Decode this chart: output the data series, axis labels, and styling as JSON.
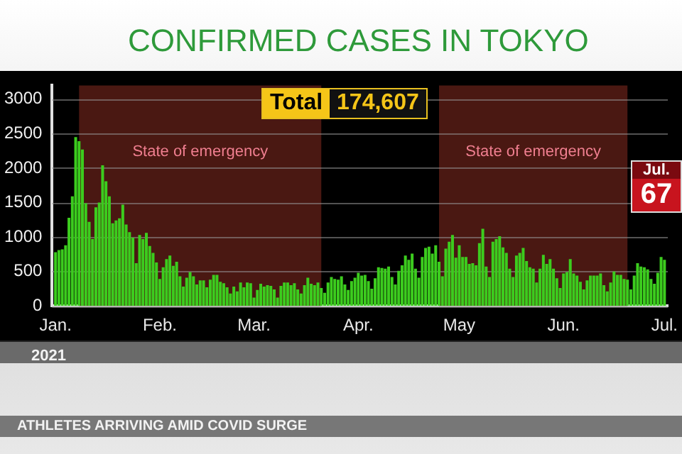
{
  "chart_data": {
    "type": "bar",
    "title": "CONFIRMED CASES IN TOKYO",
    "xlabel": "2021",
    "annotations": [
      "Total",
      "174,607",
      "Jul.",
      "67",
      "ATHLETES ARRIVING AMID COVID SURGE"
    ],
    "x": [
      "2021-01-01",
      "2021-01-02",
      "2021-01-03",
      "2021-01-04",
      "2021-01-05",
      "2021-01-06",
      "2021-01-07",
      "2021-01-08",
      "2021-01-09",
      "2021-01-10",
      "2021-01-11",
      "2021-01-12",
      "2021-01-13",
      "2021-01-14",
      "2021-01-15",
      "2021-01-16",
      "2021-01-17",
      "2021-01-18",
      "2021-01-19",
      "2021-01-20",
      "2021-01-21",
      "2021-01-22",
      "2021-01-23",
      "2021-01-24",
      "2021-01-25",
      "2021-01-26",
      "2021-01-27",
      "2021-01-28",
      "2021-01-29",
      "2021-01-30",
      "2021-01-31",
      "2021-02-01",
      "2021-02-02",
      "2021-02-03",
      "2021-02-04",
      "2021-02-05",
      "2021-02-06",
      "2021-02-07",
      "2021-02-08",
      "2021-02-09",
      "2021-02-10",
      "2021-02-11",
      "2021-02-12",
      "2021-02-13",
      "2021-02-14",
      "2021-02-15",
      "2021-02-16",
      "2021-02-17",
      "2021-02-18",
      "2021-02-19",
      "2021-02-20",
      "2021-02-21",
      "2021-02-22",
      "2021-02-23",
      "2021-02-24",
      "2021-02-25",
      "2021-02-26",
      "2021-02-27",
      "2021-02-28",
      "2021-03-01",
      "2021-03-02",
      "2021-03-03",
      "2021-03-04",
      "2021-03-05",
      "2021-03-06",
      "2021-03-07",
      "2021-03-08",
      "2021-03-09",
      "2021-03-10",
      "2021-03-11",
      "2021-03-12",
      "2021-03-13",
      "2021-03-14",
      "2021-03-15",
      "2021-03-16",
      "2021-03-17",
      "2021-03-18",
      "2021-03-19",
      "2021-03-20",
      "2021-03-21",
      "2021-03-22",
      "2021-03-23",
      "2021-03-24",
      "2021-03-25",
      "2021-03-26",
      "2021-03-27",
      "2021-03-28",
      "2021-03-29",
      "2021-03-30",
      "2021-03-31",
      "2021-04-01",
      "2021-04-02",
      "2021-04-03",
      "2021-04-04",
      "2021-04-05",
      "2021-04-06",
      "2021-04-07",
      "2021-04-08",
      "2021-04-09",
      "2021-04-10",
      "2021-04-11",
      "2021-04-12",
      "2021-04-13",
      "2021-04-14",
      "2021-04-15",
      "2021-04-16",
      "2021-04-17",
      "2021-04-18",
      "2021-04-19",
      "2021-04-20",
      "2021-04-21",
      "2021-04-22",
      "2021-04-23",
      "2021-04-24",
      "2021-04-25",
      "2021-04-26",
      "2021-04-27",
      "2021-04-28",
      "2021-04-29",
      "2021-04-30",
      "2021-05-01",
      "2021-05-02",
      "2021-05-03",
      "2021-05-04",
      "2021-05-05",
      "2021-05-06",
      "2021-05-07",
      "2021-05-08",
      "2021-05-09",
      "2021-05-10",
      "2021-05-11",
      "2021-05-12",
      "2021-05-13",
      "2021-05-14",
      "2021-05-15",
      "2021-05-16",
      "2021-05-17",
      "2021-05-18",
      "2021-05-19",
      "2021-05-20",
      "2021-05-21",
      "2021-05-22",
      "2021-05-23",
      "2021-05-24",
      "2021-05-25",
      "2021-05-26",
      "2021-05-27",
      "2021-05-28",
      "2021-05-29",
      "2021-05-30",
      "2021-05-31",
      "2021-06-01",
      "2021-06-02",
      "2021-06-03",
      "2021-06-04",
      "2021-06-05",
      "2021-06-06",
      "2021-06-07",
      "2021-06-08",
      "2021-06-09",
      "2021-06-10",
      "2021-06-11",
      "2021-06-12",
      "2021-06-13",
      "2021-06-14",
      "2021-06-15",
      "2021-06-16",
      "2021-06-17",
      "2021-06-18",
      "2021-06-19",
      "2021-06-20",
      "2021-06-21",
      "2021-06-22",
      "2021-06-23",
      "2021-06-24",
      "2021-06-25",
      "2021-06-26",
      "2021-06-27",
      "2021-06-28",
      "2021-06-29",
      "2021-06-30",
      "2021-07-01"
    ],
    "values": [
      780,
      810,
      820,
      880,
      1280,
      1590,
      2450,
      2390,
      2270,
      1490,
      1220,
      970,
      1430,
      1500,
      2040,
      1810,
      1590,
      1200,
      1240,
      1270,
      1470,
      1180,
      1070,
      990,
      620,
      1030,
      970,
      1060,
      870,
      770,
      630,
      390,
      560,
      680,
      730,
      580,
      640,
      430,
      280,
      410,
      490,
      430,
      310,
      370,
      370,
      270,
      380,
      450,
      450,
      350,
      330,
      270,
      180,
      280,
      210,
      340,
      270,
      340,
      330,
      120,
      230,
      320,
      280,
      300,
      290,
      240,
      120,
      290,
      340,
      340,
      300,
      330,
      240,
      180,
      300,
      410,
      320,
      300,
      340,
      260,
      190,
      340,
      420,
      390,
      380,
      430,
      310,
      230,
      360,
      410,
      480,
      440,
      450,
      360,
      250,
      400,
      560,
      550,
      540,
      570,
      420,
      310,
      510,
      590,
      730,
      670,
      760,
      540,
      410,
      710,
      840,
      860,
      760,
      880,
      640,
      430,
      830,
      930,
      1030,
      700,
      880,
      710,
      710,
      610,
      620,
      590,
      910,
      1120,
      570,
      420,
      930,
      970,
      1010,
      850,
      770,
      540,
      420,
      730,
      770,
      840,
      650,
      560,
      540,
      340,
      540,
      740,
      610,
      680,
      540,
      400,
      260,
      470,
      490,
      680,
      470,
      440,
      350,
      240,
      370,
      440,
      440,
      440,
      470,
      300,
      210,
      340,
      500,
      450,
      450,
      390,
      380,
      240,
      440,
      620,
      570,
      560,
      530,
      390,
      320,
      480,
      710,
      670
    ],
    "color": "#3ccc1e",
    "xlim": [
      "2020-12-31",
      "2021-07-02"
    ],
    "xticks": [
      {
        "value": "2021-01-01",
        "label": "Jan."
      },
      {
        "value": "2021-02-01",
        "label": "Feb."
      },
      {
        "value": "2021-03-01",
        "label": "Mar."
      },
      {
        "value": "2021-04-01",
        "label": "Apr."
      },
      {
        "value": "2021-05-01",
        "label": "May"
      },
      {
        "value": "2021-06-01",
        "label": "Jun."
      },
      {
        "value": "2021-07-01",
        "label": "Jul."
      }
    ],
    "ylim": [
      0,
      3200
    ],
    "yticks": [
      0,
      500,
      1000,
      1500,
      2000,
      2500,
      3000
    ],
    "bands": [
      {
        "axis": "x",
        "from": "2021-01-08",
        "to": "2021-03-21",
        "label": "State of emergency",
        "color": "#4a1812"
      },
      {
        "axis": "x",
        "from": "2021-04-25",
        "to": "2021-06-20",
        "label": "State of emergency",
        "color": "#4a1812"
      }
    ],
    "grid": "y",
    "legend": false
  }
}
